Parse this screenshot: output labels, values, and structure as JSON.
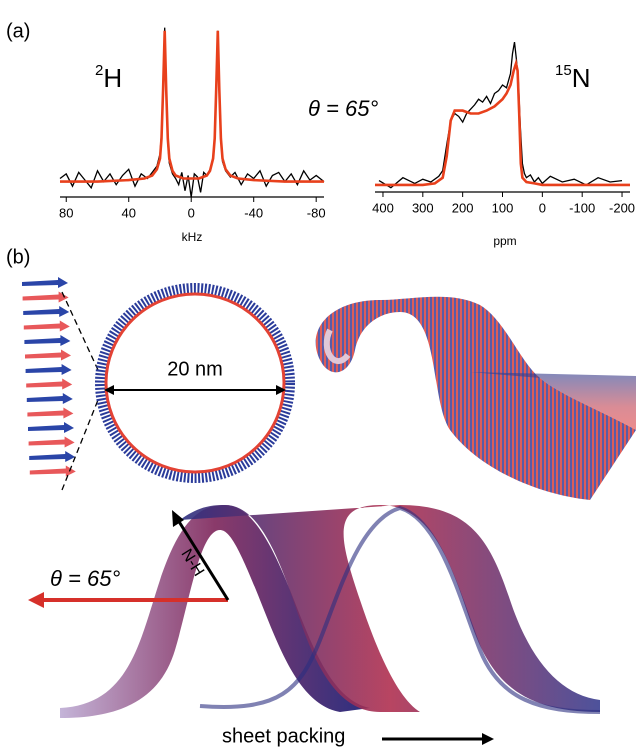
{
  "panel_a": {
    "label": "(a)",
    "theta_label": "θ = 65°",
    "charts": [
      {
        "type": "line",
        "nucleus": {
          "sup": "2",
          "base": "H"
        },
        "x_label": "kHz",
        "xlim": [
          84,
          -85
        ],
        "ylim": [
          -0.1,
          1.05
        ],
        "xticks": [
          80,
          40,
          0,
          -40,
          -80
        ],
        "series": [
          {
            "color": "#000000",
            "x": [
              84,
              80,
              76,
              72,
              68,
              64,
              60,
              56,
              52,
              48,
              44,
              40,
              36,
              32,
              28,
              25,
              22,
              20,
              19,
              18,
              17,
              16,
              15,
              14,
              12,
              10,
              8,
              6,
              4,
              2,
              0,
              -2,
              -4,
              -6,
              -8,
              -10,
              -12,
              -14,
              -15,
              -16,
              -17,
              -18,
              -19,
              -20,
              -22,
              -25,
              -28,
              -32,
              -36,
              -40,
              -44,
              -48,
              -52,
              -56,
              -60,
              -64,
              -68,
              -72,
              -76,
              -80,
              -85
            ],
            "values": [
              0.02,
              0.05,
              -0.03,
              0.06,
              0.01,
              -0.04,
              0.07,
              0.0,
              0.05,
              -0.02,
              0.04,
              0.08,
              -0.03,
              0.05,
              0.02,
              0.06,
              0.1,
              0.18,
              0.32,
              0.62,
              1.0,
              0.55,
              0.25,
              0.12,
              0.05,
              0.02,
              -0.02,
              0.06,
              -0.06,
              0.04,
              -0.1,
              0.05,
              0.03,
              -0.07,
              0.06,
              0.04,
              0.08,
              0.16,
              0.3,
              0.65,
              0.98,
              0.58,
              0.27,
              0.13,
              0.07,
              0.03,
              0.06,
              -0.02,
              0.05,
              0.02,
              0.07,
              -0.03,
              0.04,
              0.06,
              0.0,
              0.05,
              -0.02,
              0.07,
              0.01,
              0.04,
              0.0
            ]
          },
          {
            "color": "#e8401c",
            "x": [
              84,
              60,
              40,
              30,
              25,
              22,
              20,
              19,
              18,
              17,
              16,
              15,
              14,
              12,
              10,
              5,
              0,
              -5,
              -10,
              -12,
              -14,
              -15,
              -16,
              -17,
              -18,
              -19,
              -20,
              -22,
              -25,
              -30,
              -40,
              -60,
              -85
            ],
            "values": [
              0,
              0,
              0.01,
              0.02,
              0.04,
              0.08,
              0.15,
              0.28,
              0.6,
              0.98,
              0.6,
              0.28,
              0.15,
              0.07,
              0.04,
              0.02,
              0.02,
              0.02,
              0.04,
              0.07,
              0.15,
              0.28,
              0.6,
              0.98,
              0.6,
              0.28,
              0.15,
              0.08,
              0.04,
              0.02,
              0.01,
              0,
              0
            ]
          }
        ]
      },
      {
        "type": "line",
        "nucleus": {
          "sup": "15",
          "base": "N"
        },
        "x_label": "ppm",
        "xlim": [
          420,
          -220
        ],
        "ylim": [
          -0.05,
          1.05
        ],
        "xticks": [
          400,
          300,
          200,
          100,
          0,
          -100,
          -200
        ],
        "series": [
          {
            "color": "#000000",
            "x": [
              410,
              380,
              350,
              320,
              300,
              280,
              260,
              250,
              240,
              230,
              220,
              210,
              200,
              190,
              180,
              170,
              160,
              150,
              140,
              130,
              120,
              110,
              100,
              90,
              80,
              75,
              70,
              65,
              60,
              55,
              50,
              45,
              40,
              30,
              20,
              10,
              0,
              -20,
              -50,
              -80,
              -110,
              -140,
              -170,
              -200
            ],
            "values": [
              0.03,
              -0.02,
              0.05,
              0.01,
              0.04,
              0.02,
              0.06,
              0.1,
              0.28,
              0.45,
              0.5,
              0.48,
              0.44,
              0.5,
              0.53,
              0.56,
              0.6,
              0.58,
              0.62,
              0.57,
              0.64,
              0.66,
              0.7,
              0.68,
              0.78,
              0.92,
              1.0,
              0.88,
              0.72,
              0.4,
              0.15,
              0.08,
              0.05,
              0.07,
              0.02,
              0.05,
              0.01,
              0.06,
              0.02,
              0.04,
              0.0,
              0.05,
              0.02,
              0.03
            ]
          },
          {
            "color": "#e8401c",
            "x": [
              420,
              300,
              270,
              250,
              240,
              230,
              220,
              200,
              180,
              160,
              140,
              120,
              100,
              90,
              80,
              72,
              66,
              62,
              58,
              54,
              50,
              40,
              20,
              0,
              -100,
              -220
            ],
            "values": [
              0,
              0,
              0.01,
              0.05,
              0.2,
              0.45,
              0.52,
              0.52,
              0.5,
              0.5,
              0.52,
              0.55,
              0.6,
              0.64,
              0.7,
              0.8,
              0.85,
              0.8,
              0.5,
              0.15,
              0.05,
              0.02,
              0.01,
              0,
              0,
              0
            ]
          }
        ]
      }
    ]
  },
  "panel_b": {
    "label": "(b)",
    "diameter_label": "20 nm",
    "theta_label": "θ = 65°",
    "bond_label": "N-H",
    "packing_label": "sheet packing"
  }
}
